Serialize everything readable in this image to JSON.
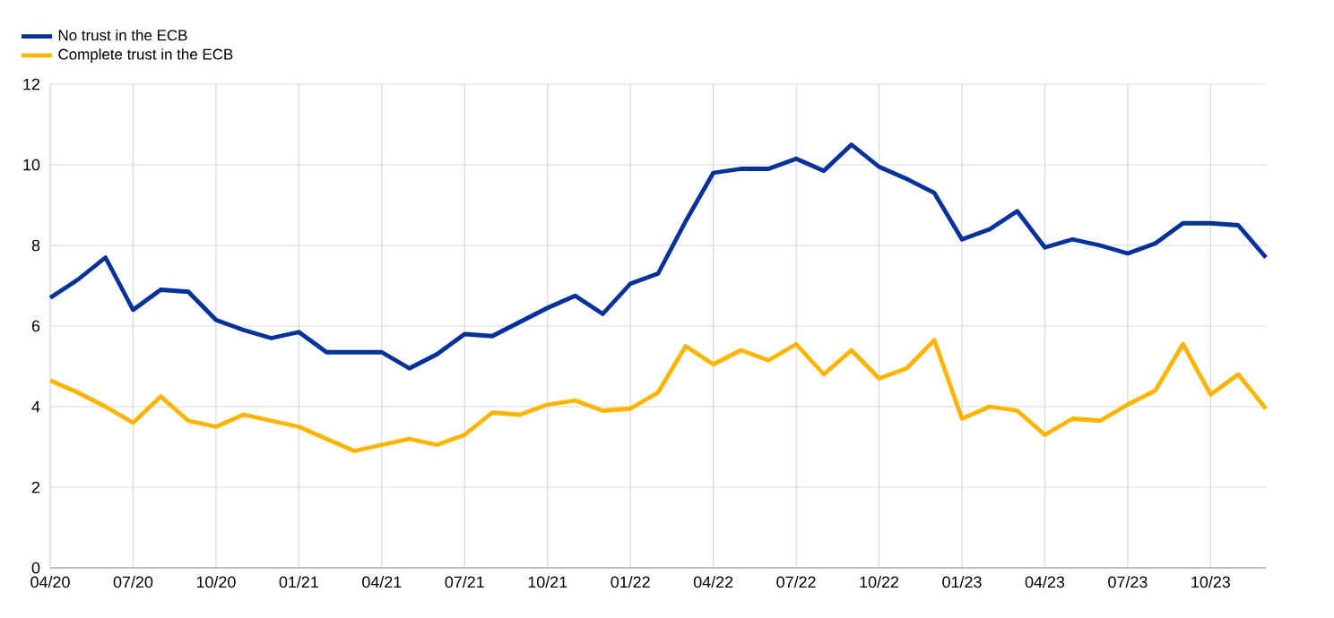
{
  "chart_data": {
    "type": "line",
    "categories": [
      "04/20",
      null,
      null,
      "07/20",
      null,
      null,
      "10/20",
      null,
      null,
      "01/21",
      null,
      null,
      "04/21",
      null,
      null,
      "07/21",
      null,
      null,
      "10/21",
      null,
      null,
      "01/22",
      null,
      null,
      "04/22",
      null,
      null,
      "07/22",
      null,
      null,
      "10/22",
      null,
      null,
      "01/23",
      null,
      null,
      "04/23",
      null,
      null,
      "07/23",
      null,
      null,
      "10/23",
      null,
      null
    ],
    "series": [
      {
        "name": "No trust in the ECB",
        "color": "#003299",
        "values": [
          6.7,
          7.15,
          7.7,
          6.4,
          6.9,
          6.85,
          6.15,
          5.9,
          5.7,
          5.85,
          5.35,
          5.35,
          5.35,
          4.95,
          5.3,
          5.8,
          5.75,
          6.1,
          6.45,
          6.75,
          6.3,
          7.05,
          7.3,
          8.6,
          9.8,
          9.9,
          9.9,
          10.15,
          9.85,
          10.5,
          9.95,
          9.65,
          9.3,
          8.15,
          8.4,
          8.85,
          7.95,
          8.15,
          8.0,
          7.8,
          8.05,
          8.55,
          8.55,
          8.5,
          7.7
        ]
      },
      {
        "name": "Complete trust in the ECB",
        "color": "#ffb400",
        "values": [
          4.65,
          4.35,
          4.0,
          3.6,
          4.25,
          3.65,
          3.5,
          3.8,
          3.65,
          3.5,
          3.2,
          2.9,
          3.05,
          3.2,
          3.05,
          3.3,
          3.85,
          3.8,
          4.05,
          4.15,
          3.9,
          3.95,
          4.35,
          5.5,
          5.05,
          5.4,
          5.15,
          5.55,
          4.8,
          5.4,
          4.7,
          4.95,
          5.65,
          3.7,
          4.0,
          3.9,
          3.3,
          3.7,
          3.65,
          4.05,
          4.4,
          5.55,
          4.3,
          4.8,
          3.95
        ]
      }
    ],
    "ylim": [
      0,
      12
    ],
    "yticks": [
      0,
      2,
      4,
      6,
      8,
      10,
      12
    ],
    "grid": true,
    "legend": "top left",
    "line_style": "solid",
    "marker": "none"
  }
}
